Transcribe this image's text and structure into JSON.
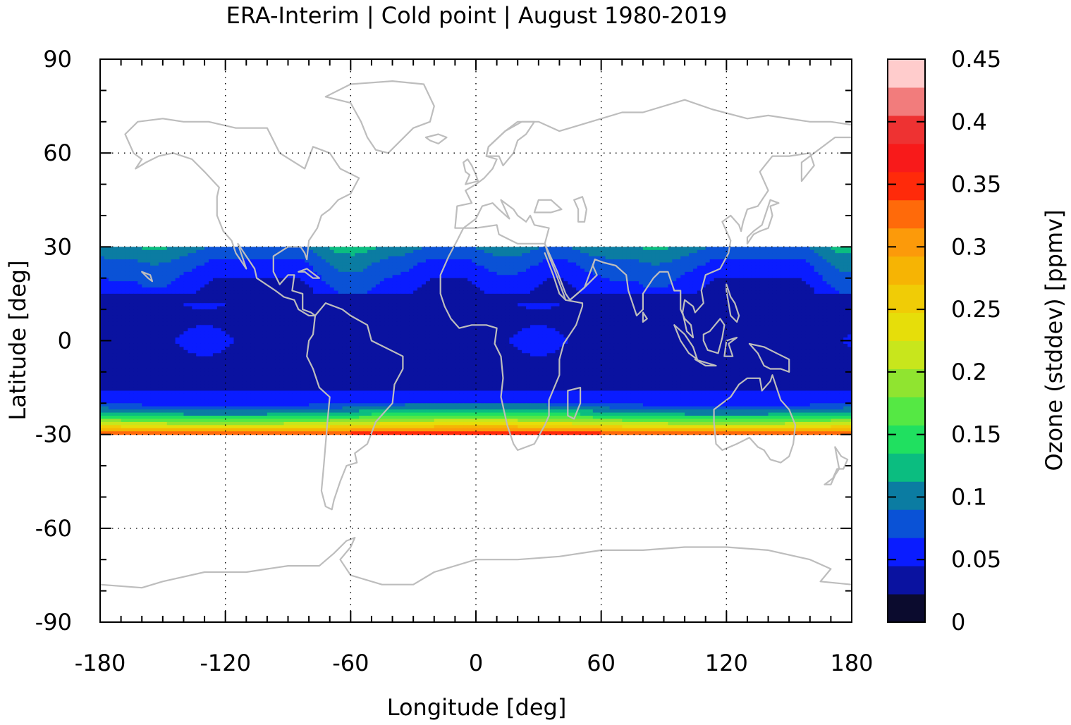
{
  "chart_data": {
    "type": "heatmap",
    "title": "ERA-Interim | Cold point | August 1980-2019",
    "xlabel": "Longitude [deg]",
    "ylabel": "Latitude [deg]",
    "colorbar_label": "Ozone (stddev) [ppmv]",
    "xlim": [
      -180,
      180
    ],
    "ylim": [
      -90,
      90
    ],
    "data_lat_range": [
      -30,
      30
    ],
    "x_ticks": [
      "-180",
      "-120",
      "-60",
      "0",
      "60",
      "120",
      "180"
    ],
    "y_ticks": [
      "90",
      "60",
      "30",
      "0",
      "-30",
      "-60",
      "-90"
    ],
    "colorbar_range": [
      0,
      0.45
    ],
    "colorbar_ticks": [
      "0.45",
      "0.4",
      "0.35",
      "0.3",
      "0.25",
      "0.2",
      "0.15",
      "0.1",
      "0.05",
      "0"
    ],
    "colorbar_levels": [
      {
        "from": 0.0,
        "to": 0.0225,
        "color": "#0b0b2e"
      },
      {
        "from": 0.0225,
        "to": 0.045,
        "color": "#0a12a0"
      },
      {
        "from": 0.045,
        "to": 0.0675,
        "color": "#0a1cff"
      },
      {
        "from": 0.0675,
        "to": 0.09,
        "color": "#0a52d6"
      },
      {
        "from": 0.09,
        "to": 0.1125,
        "color": "#0b7ca2"
      },
      {
        "from": 0.1125,
        "to": 0.135,
        "color": "#0bbd80"
      },
      {
        "from": 0.135,
        "to": 0.1575,
        "color": "#20e060"
      },
      {
        "from": 0.1575,
        "to": 0.18,
        "color": "#55e844"
      },
      {
        "from": 0.18,
        "to": 0.2025,
        "color": "#90e430"
      },
      {
        "from": 0.2025,
        "to": 0.225,
        "color": "#c8e61c"
      },
      {
        "from": 0.225,
        "to": 0.2475,
        "color": "#e6de0a"
      },
      {
        "from": 0.2475,
        "to": 0.27,
        "color": "#f0cc06"
      },
      {
        "from": 0.27,
        "to": 0.2925,
        "color": "#f6b404"
      },
      {
        "from": 0.2925,
        "to": 0.315,
        "color": "#fc9a0a"
      },
      {
        "from": 0.315,
        "to": 0.3375,
        "color": "#ff6a0a"
      },
      {
        "from": 0.3375,
        "to": 0.36,
        "color": "#ff2a0a"
      },
      {
        "from": 0.36,
        "to": 0.3825,
        "color": "#f81a1a"
      },
      {
        "from": 0.3825,
        "to": 0.405,
        "color": "#ee3232"
      },
      {
        "from": 0.405,
        "to": 0.4275,
        "color": "#f27c7c"
      },
      {
        "from": 0.4275,
        "to": 0.45,
        "color": "#ffcccc"
      }
    ],
    "mean_zonal_profile": [
      {
        "lat": 30,
        "value": 0.085
      },
      {
        "lat": 25,
        "value": 0.06
      },
      {
        "lat": 20,
        "value": 0.045
      },
      {
        "lat": 15,
        "value": 0.03
      },
      {
        "lat": 10,
        "value": 0.025
      },
      {
        "lat": 5,
        "value": 0.025
      },
      {
        "lat": 0,
        "value": 0.028
      },
      {
        "lat": -5,
        "value": 0.025
      },
      {
        "lat": -10,
        "value": 0.025
      },
      {
        "lat": -15,
        "value": 0.03
      },
      {
        "lat": -17,
        "value": 0.05
      },
      {
        "lat": -20,
        "value": 0.07
      },
      {
        "lat": -22,
        "value": 0.1
      },
      {
        "lat": -24,
        "value": 0.14
      },
      {
        "lat": -26,
        "value": 0.2
      },
      {
        "lat": -28,
        "value": 0.27
      },
      {
        "lat": -30,
        "value": 0.36
      }
    ],
    "grid": true
  }
}
